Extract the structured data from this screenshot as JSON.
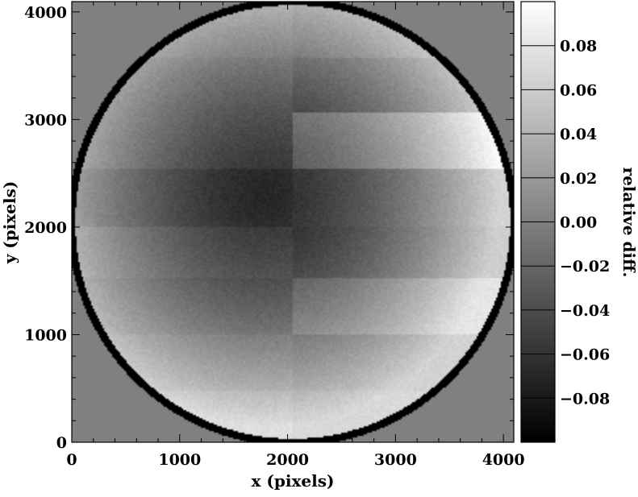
{
  "chart_data": {
    "type": "heatmap",
    "xlabel": "x (pixels)",
    "ylabel": "y (pixels)",
    "xlim": [
      0,
      4096
    ],
    "ylim": [
      0,
      4096
    ],
    "xticks": [
      0,
      1000,
      2000,
      3000,
      4000
    ],
    "yticks": [
      0,
      1000,
      2000,
      3000,
      4000
    ],
    "colorbar": {
      "label": "relative diff.",
      "range": [
        -0.1,
        0.1
      ],
      "ticks": [
        "−0.08",
        "−0.06",
        "−0.04",
        "−0.02",
        "0.00",
        "0.02",
        "0.04",
        "0.06",
        "0.08"
      ],
      "tick_values": [
        -0.08,
        -0.06,
        -0.04,
        -0.02,
        0.0,
        0.02,
        0.04,
        0.06,
        0.08
      ],
      "colormap": "grayscale"
    },
    "image": {
      "description_shape": "circular field of view",
      "center": [
        2048,
        2048
      ],
      "radius": 2050,
      "outside_value": 0.0,
      "edge_ring_value": -0.1,
      "minimum_near": [
        1800,
        2300
      ],
      "minimum_value": -0.06,
      "edge_value": 0.07,
      "blocks": [
        {
          "x": [
            0,
            2048
          ],
          "y": [
            0,
            480
          ],
          "offset": 0.005
        },
        {
          "x": [
            2048,
            4096
          ],
          "y": [
            0,
            480
          ],
          "offset": 0.0
        },
        {
          "x": [
            0,
            2048
          ],
          "y": [
            480,
            1000
          ],
          "offset": 0.0
        },
        {
          "x": [
            2048,
            4096
          ],
          "y": [
            480,
            1000
          ],
          "offset": -0.005
        },
        {
          "x": [
            0,
            2048
          ],
          "y": [
            1000,
            1520
          ],
          "offset": -0.005
        },
        {
          "x": [
            2048,
            4096
          ],
          "y": [
            1000,
            1520
          ],
          "offset": 0.01
        },
        {
          "x": [
            0,
            2048
          ],
          "y": [
            1520,
            2010
          ],
          "offset": 0.0
        },
        {
          "x": [
            2048,
            4096
          ],
          "y": [
            1520,
            2010
          ],
          "offset": -0.008
        },
        {
          "x": [
            0,
            2048
          ],
          "y": [
            2010,
            2540
          ],
          "offset": -0.01
        },
        {
          "x": [
            2048,
            4096
          ],
          "y": [
            2010,
            2540
          ],
          "offset": -0.004
        },
        {
          "x": [
            0,
            2048
          ],
          "y": [
            2540,
            3060
          ],
          "offset": 0.0
        },
        {
          "x": [
            2048,
            4096
          ],
          "y": [
            2540,
            3060
          ],
          "offset": 0.025
        },
        {
          "x": [
            0,
            2048
          ],
          "y": [
            3060,
            3580
          ],
          "offset": 0.0
        },
        {
          "x": [
            2048,
            4096
          ],
          "y": [
            3060,
            3580
          ],
          "offset": -0.01
        },
        {
          "x": [
            0,
            2048
          ],
          "y": [
            3580,
            4096
          ],
          "offset": 0.005
        },
        {
          "x": [
            2048,
            4096
          ],
          "y": [
            3580,
            4096
          ],
          "offset": 0.0
        }
      ]
    }
  }
}
